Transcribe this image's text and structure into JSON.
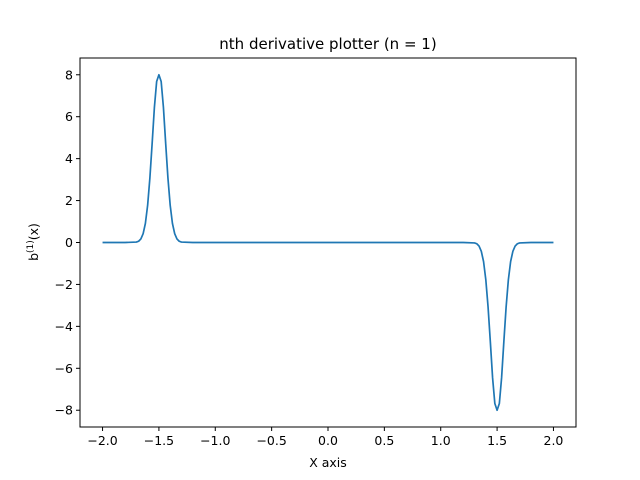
{
  "chart_data": {
    "type": "line",
    "title": "nth derivative plotter (n = 1)",
    "xlabel": "X axis",
    "ylabel": {
      "base": "b",
      "superscript": "(1)",
      "suffix": "(x)"
    },
    "xlim": [
      -2.2,
      2.2
    ],
    "ylim": [
      -8.8,
      8.8
    ],
    "x_ticks": [
      -2.0,
      -1.5,
      -1.0,
      -0.5,
      0.0,
      0.5,
      1.0,
      1.5,
      2.0
    ],
    "x_tick_labels": [
      "−2.0",
      "−1.5",
      "−1.0",
      "−0.5",
      "0.0",
      "0.5",
      "1.0",
      "1.5",
      "2.0"
    ],
    "y_ticks": [
      -8,
      -6,
      -4,
      -2,
      0,
      2,
      4,
      6,
      8
    ],
    "y_tick_labels": [
      "−8",
      "−6",
      "−4",
      "−2",
      "0",
      "2",
      "4",
      "6",
      "8"
    ],
    "grid": false,
    "legend": "none",
    "series": [
      {
        "color": "#1f77b4",
        "x": [
          -2.0,
          -1.8,
          -1.7,
          -1.68,
          -1.66,
          -1.64,
          -1.62,
          -1.6,
          -1.58,
          -1.56,
          -1.54,
          -1.52,
          -1.5,
          -1.48,
          -1.46,
          -1.44,
          -1.42,
          -1.4,
          -1.38,
          -1.36,
          -1.34,
          -1.32,
          -1.3,
          -1.2,
          -1.0,
          0.0,
          1.0,
          1.2,
          1.3,
          1.32,
          1.34,
          1.36,
          1.38,
          1.4,
          1.42,
          1.44,
          1.46,
          1.48,
          1.5,
          1.52,
          1.54,
          1.56,
          1.58,
          1.6,
          1.62,
          1.64,
          1.66,
          1.68,
          1.7,
          1.8,
          2.0
        ],
        "y": [
          0.0,
          0.0,
          0.02,
          0.06,
          0.17,
          0.42,
          0.91,
          1.78,
          3.08,
          4.73,
          6.45,
          7.68,
          8.0,
          7.68,
          6.45,
          4.73,
          3.08,
          1.78,
          0.91,
          0.42,
          0.17,
          0.06,
          0.02,
          0.0,
          0.0,
          0.0,
          0.0,
          0.0,
          -0.02,
          -0.06,
          -0.17,
          -0.42,
          -0.91,
          -1.78,
          -3.08,
          -4.73,
          -6.45,
          -7.68,
          -8.0,
          -7.68,
          -6.45,
          -4.73,
          -3.08,
          -1.78,
          -0.91,
          -0.42,
          -0.17,
          -0.06,
          -0.02,
          0.0,
          0.0
        ]
      }
    ]
  }
}
